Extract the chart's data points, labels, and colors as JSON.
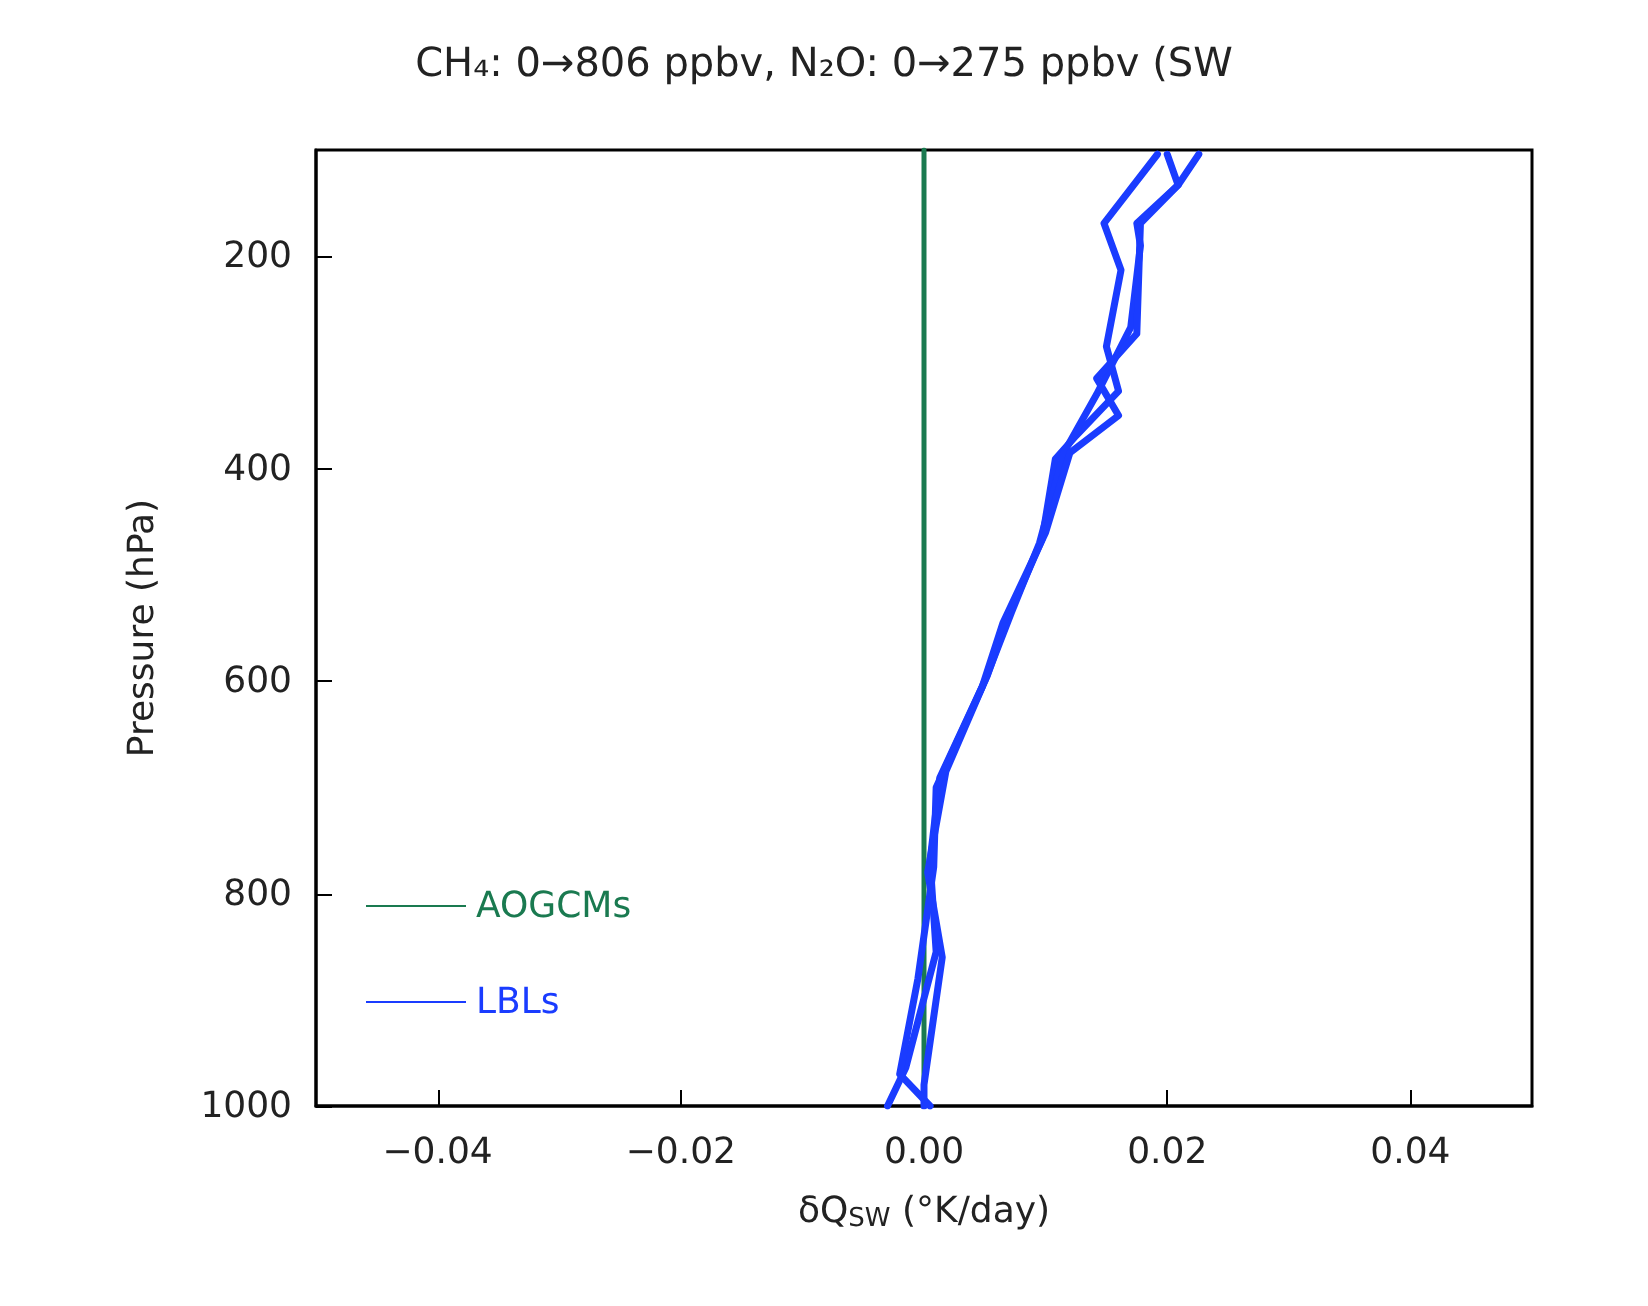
{
  "chart_data": {
    "type": "line",
    "title": "CH₄: 0→806 ppbv, N₂O: 0→275 ppbv (SW",
    "xlabel": "δQ$_{SW}$ (°K/day)",
    "ylabel": "Pressure (hPa)",
    "xlim": [
      -0.05,
      0.05
    ],
    "xticks": [
      -0.04,
      -0.02,
      {
        "value": 0,
        "label": "0.00"
      },
      0.02,
      0.04
    ],
    "ylim": [
      1000,
      100
    ],
    "yticks": [
      200,
      400,
      600,
      800,
      1000
    ],
    "grid": false,
    "legend": "bottom left",
    "marker": "none",
    "line_style": "solid",
    "series": [
      {
        "name": "AOGCMs",
        "color": "#1a7a50",
        "x": [
          0,
          0
        ],
        "values": [
          1000,
          100
        ]
      },
      {
        "name": "LBLs",
        "color": "#1a3cff",
        "x": [
          0.0192,
          0.0148,
          0.0162,
          0.015,
          0.016,
          0.0125,
          0.0108,
          0.0097,
          0.0069,
          0.0052,
          0.0013,
          0.0005,
          0.001,
          -0.0015,
          -0.003
        ],
        "values": [
          104,
          169,
          213,
          285,
          327,
          369,
          391,
          467,
          540,
          595,
          691,
          769,
          855,
          964,
          1000
        ]
      },
      {
        "color": "#1a3cff",
        "x": [
          0.0226,
          0.0209,
          0.0175,
          0.0178,
          0.017,
          0.0142,
          0.0115,
          0.0095,
          0.0072,
          0.005,
          0.0018,
          0.0003,
          0.0015,
          0.0,
          0.0
        ],
        "values": [
          104,
          133,
          169,
          190,
          267,
          330,
          385,
          470,
          535,
          600,
          685,
          780,
          860,
          980,
          1000
        ]
      },
      {
        "color": "#1a3cff",
        "x": [
          0.02,
          0.0209,
          0.0178,
          0.0175,
          0.0142,
          0.016,
          0.012,
          0.01,
          0.0065,
          0.0048,
          0.001,
          0.0008,
          -0.0005,
          -0.002,
          0.0005
        ],
        "values": [
          104,
          133,
          169,
          273,
          315,
          350,
          385,
          460,
          545,
          605,
          700,
          775,
          880,
          970,
          1000
        ]
      }
    ]
  }
}
